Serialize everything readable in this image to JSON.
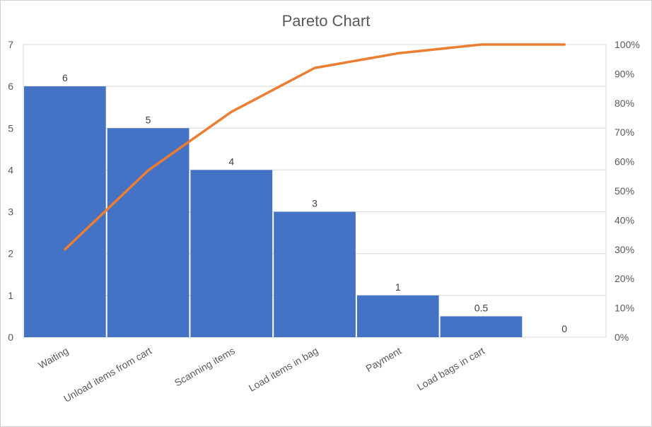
{
  "chart_data": {
    "type": "bar",
    "title": "Pareto Chart",
    "categories": [
      "Waiting",
      "Unload items from cart",
      "Scanning items",
      "Load items in bag",
      "Payment",
      "Load bags in cart",
      ""
    ],
    "values": [
      6,
      5,
      4,
      3,
      1,
      0.5,
      0
    ],
    "data_labels": [
      "6",
      "5",
      "4",
      "3",
      "1",
      "0.5",
      "0"
    ],
    "line": {
      "type": "line",
      "values": [
        0.3,
        0.57,
        0.77,
        0.92,
        0.97,
        1.0,
        1.0
      ]
    },
    "ylim": [
      0,
      7
    ],
    "y_ticks": [
      "0",
      "1",
      "2",
      "3",
      "4",
      "5",
      "6",
      "7"
    ],
    "y2lim": [
      0,
      1
    ],
    "y2_ticks": [
      "0%",
      "10%",
      "20%",
      "30%",
      "40%",
      "50%",
      "60%",
      "70%",
      "80%",
      "90%",
      "100%"
    ],
    "grid": true,
    "colors": {
      "bars": "#4472c4",
      "line": "#ed7d31",
      "grid": "#d9d9d9"
    }
  }
}
